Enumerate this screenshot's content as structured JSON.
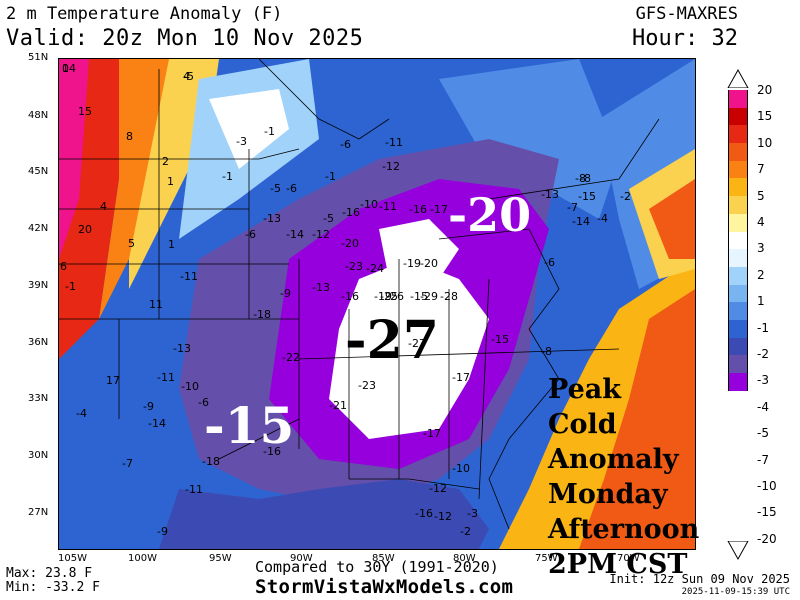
{
  "header": {
    "title": "2 m Temperature Anomaly (F)",
    "valid": "Valid: 20z Mon 10 Nov 2025",
    "model": "GFS-MAXRES",
    "hour": "Hour: 32"
  },
  "map": {
    "latitude_labels": [
      "51N",
      "48N",
      "45N",
      "42N",
      "39N",
      "36N",
      "33N",
      "30N",
      "27N"
    ],
    "longitude_labels": [
      "105W",
      "100W",
      "95W",
      "90W",
      "85W",
      "80W",
      "75W",
      "70W"
    ],
    "annotations": {
      "big_minus_20": "-20",
      "big_minus_27": "-27",
      "big_minus_15": "-15",
      "note_lines": [
        "Peak Cold",
        "Anomaly",
        "Monday",
        "Afternoon",
        "2PM CST"
      ]
    },
    "station_values": [
      "14",
      "4",
      "15",
      "8",
      "2",
      "1",
      "4",
      "20",
      "5",
      "1",
      "-1",
      "-3",
      "-6",
      "-1",
      "-5",
      "-6",
      "-1",
      "-5",
      "-6",
      "-13",
      "-11",
      "-8",
      "-12",
      "-16",
      "-10",
      "-11",
      "-16",
      "-17",
      "-14",
      "-12",
      "-20",
      "-23",
      "-19",
      "-24",
      "-20",
      "-26",
      "-9",
      "-13",
      "-16",
      "-19",
      "-15",
      "-11",
      "-18",
      "-25",
      "-29",
      "-28",
      "-27",
      "-22",
      "-21",
      "-23",
      "-17",
      "-18",
      "-16",
      "-8",
      "-15",
      "-13",
      "-11",
      "-9",
      "-7",
      "-4",
      "-10",
      "-14",
      "-6",
      "-3",
      "-2",
      "-9",
      "-11",
      "-17",
      "-10",
      "-12",
      "-16",
      "-12",
      "-6",
      "-8",
      "-13",
      "-7",
      "-14",
      "-15",
      "-4",
      "-2",
      "6",
      "-1",
      "17",
      "11",
      "0",
      "-5"
    ]
  },
  "colorbar": {
    "labels": [
      "20",
      "15",
      "10",
      "7",
      "5",
      "4",
      "3",
      "2",
      "1",
      "-1",
      "-2",
      "-3",
      "-4",
      "-5",
      "-7",
      "-10",
      "-15",
      "-20"
    ],
    "colors": [
      "#f0148c",
      "#c80000",
      "#e62814",
      "#f05a14",
      "#fa8214",
      "#fab414",
      "#fad250",
      "#fff5a0",
      "#ffffff",
      "#e6f5ff",
      "#a0d2fa",
      "#78b4f0",
      "#508ce6",
      "#2d64d2",
      "#3c4bb4",
      "#6450aa",
      "#9600dc"
    ]
  },
  "footer": {
    "max": "Max: 23.8 F",
    "min": "Min: -33.2 F",
    "compared": "Compared to 30Y (1991-2020)",
    "site": "StormVistaWxModels.com",
    "init": "Init: 12z Sun 09 Nov 2025",
    "timestamp": "2025-11-09-15:39 UTC"
  }
}
